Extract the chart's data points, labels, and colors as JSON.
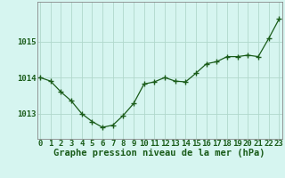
{
  "x": [
    0,
    1,
    2,
    3,
    4,
    5,
    6,
    7,
    8,
    9,
    10,
    11,
    12,
    13,
    14,
    15,
    16,
    17,
    18,
    19,
    20,
    21,
    22,
    23
  ],
  "y": [
    1014.0,
    1013.9,
    1013.6,
    1013.35,
    1013.0,
    1012.78,
    1012.62,
    1012.68,
    1012.95,
    1013.28,
    1013.82,
    1013.88,
    1014.0,
    1013.9,
    1013.88,
    1014.12,
    1014.38,
    1014.44,
    1014.58,
    1014.58,
    1014.62,
    1014.58,
    1015.08,
    1015.62
  ],
  "line_color": "#1a5c1a",
  "marker": "+",
  "marker_size": 4,
  "marker_lw": 1.0,
  "bg_color": "#d6f5f0",
  "grid_color": "#b0d8cc",
  "ylabel_ticks": [
    1013,
    1014,
    1015
  ],
  "ylim": [
    1012.3,
    1016.1
  ],
  "xlim": [
    -0.3,
    23.3
  ],
  "xlabel": "Graphe pression niveau de la mer (hPa)",
  "xlabel_fontsize": 7.5,
  "tick_fontsize": 6.5,
  "line_color_dark": "#1a5c1a"
}
